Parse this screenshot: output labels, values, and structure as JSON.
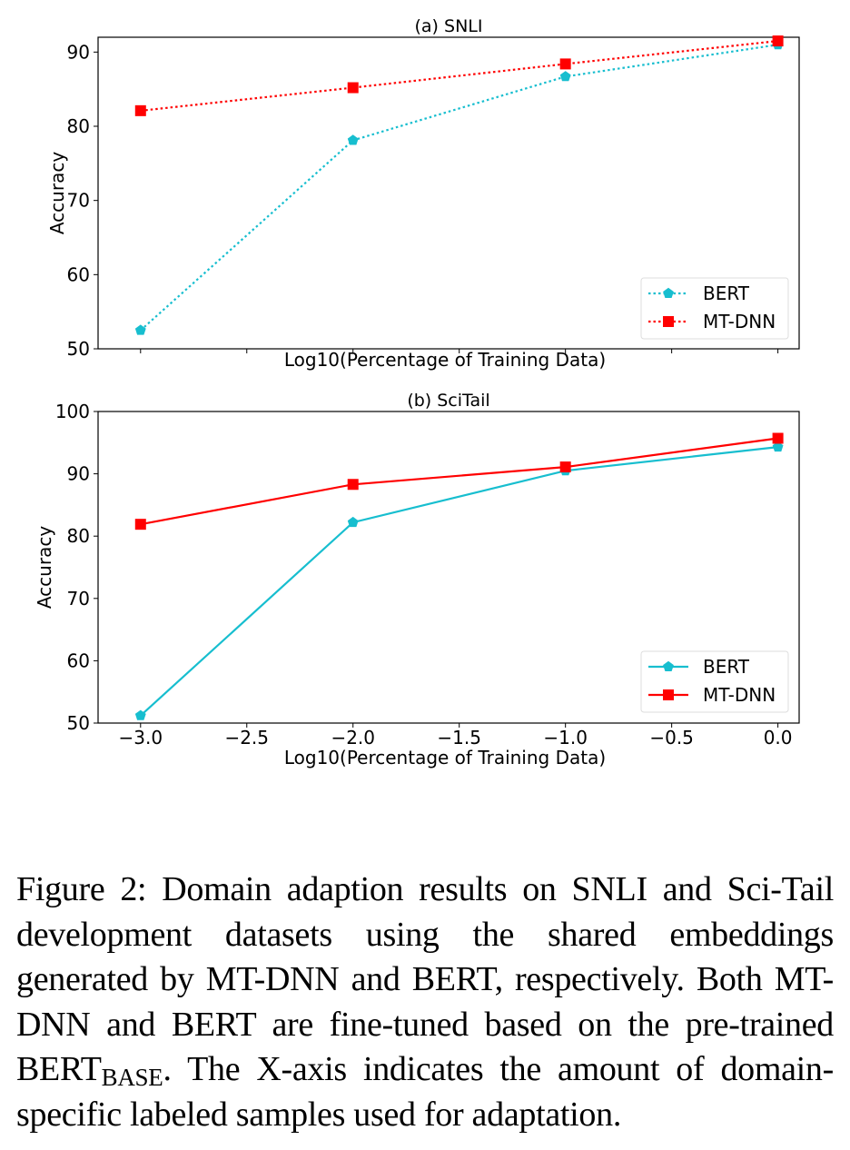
{
  "chart_data": [
    {
      "type": "line",
      "title": "(a) SNLI",
      "xlabel": "Log10(Percentage of Training Data)",
      "ylabel": "Accuracy",
      "x": [
        -3.0,
        -2.0,
        -1.0,
        0.0
      ],
      "xlim": [
        -3.2,
        0.1
      ],
      "ylim": [
        50,
        92
      ],
      "xticks": [
        -3.0,
        -2.5,
        -2.0,
        -1.5,
        -1.0,
        -0.5,
        0.0
      ],
      "xtick_labels_visible": false,
      "yticks": [
        50,
        60,
        70,
        80,
        90
      ],
      "ytick_labels": [
        "50",
        "60",
        "70",
        "80",
        "90"
      ],
      "grid": false,
      "line_style": "dotted",
      "legend_position": "lower-right",
      "series": [
        {
          "name": "BERT",
          "color": "#17becf",
          "marker": "pentagon",
          "values": [
            52.5,
            78.1,
            86.7,
            91.0
          ]
        },
        {
          "name": "MT-DNN",
          "color": "#ff0000",
          "marker": "square",
          "values": [
            82.1,
            85.2,
            88.4,
            91.5
          ]
        }
      ]
    },
    {
      "type": "line",
      "title": "(b) SciTail",
      "xlabel": "Log10(Percentage of Training Data)",
      "ylabel": "Accuracy",
      "x": [
        -3.0,
        -2.0,
        -1.0,
        0.0
      ],
      "xlim": [
        -3.2,
        0.1
      ],
      "ylim": [
        50,
        100
      ],
      "xticks": [
        -3.0,
        -2.5,
        -2.0,
        -1.5,
        -1.0,
        -0.5,
        0.0
      ],
      "xtick_labels": [
        "−3.0",
        "−2.5",
        "−2.0",
        "−1.5",
        "−1.0",
        "−0.5",
        "0.0"
      ],
      "xtick_labels_visible": true,
      "yticks": [
        50,
        60,
        70,
        80,
        90,
        100
      ],
      "ytick_labels": [
        "50",
        "60",
        "70",
        "80",
        "90",
        "100"
      ],
      "grid": false,
      "line_style": "solid",
      "legend_position": "lower-right",
      "series": [
        {
          "name": "BERT",
          "color": "#17becf",
          "marker": "pentagon",
          "values": [
            51.2,
            82.2,
            90.5,
            94.3
          ]
        },
        {
          "name": "MT-DNN",
          "color": "#ff0000",
          "marker": "square",
          "values": [
            81.9,
            88.3,
            91.1,
            95.7
          ]
        }
      ]
    }
  ],
  "caption": {
    "prefix": "Figure 2:  Domain adaption results on SNLI and Sci-Tail development datasets using the shared embeddings generated by MT-DNN and BERT, respectively.  Both MT-DNN and BERT are fine-tuned based on the pre-trained BERT",
    "subscript": "BASE",
    "suffix": ". The X-axis indicates the amount of domain-specific labeled samples used for adaptation."
  }
}
